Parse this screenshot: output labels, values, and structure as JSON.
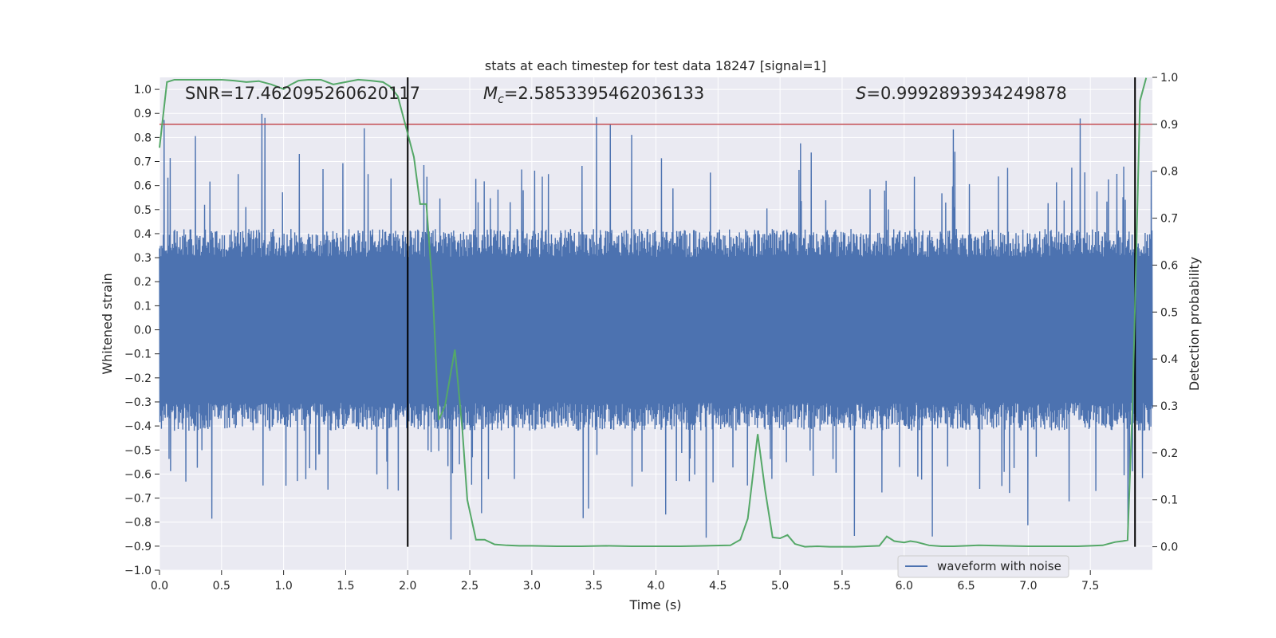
{
  "chart_data": {
    "type": "line",
    "title": "stats at each timestep for test data 18247 [signal=1]",
    "xlabel": "Time (s)",
    "ylabel": "Whitened strain",
    "ylabel_right": "Detection probability",
    "xlim": [
      0.0,
      8.0
    ],
    "ylim": [
      -1.0,
      1.05
    ],
    "ylim_right": [
      -0.05,
      1.0
    ],
    "x_ticks": [
      0.0,
      0.5,
      1.0,
      1.5,
      2.0,
      2.5,
      3.0,
      3.5,
      4.0,
      4.5,
      5.0,
      5.5,
      6.0,
      6.5,
      7.0,
      7.5
    ],
    "x_tick_labels": [
      "0.0",
      "0.5",
      "1.0",
      "1.5",
      "2.0",
      "2.5",
      "3.0",
      "3.5",
      "4.0",
      "4.5",
      "5.0",
      "5.5",
      "6.0",
      "6.5",
      "7.0",
      "7.5"
    ],
    "y_ticks": [
      -1.0,
      -0.9,
      -0.8,
      -0.7,
      -0.6,
      -0.5,
      -0.4,
      -0.3,
      -0.2,
      -0.1,
      0.0,
      0.1,
      0.2,
      0.3,
      0.4,
      0.5,
      0.6,
      0.7,
      0.8,
      0.9,
      1.0
    ],
    "y_tick_labels": [
      "−1.0",
      "−0.9",
      "−0.8",
      "−0.7",
      "−0.6",
      "−0.5",
      "−0.4",
      "−0.3",
      "−0.2",
      "−0.1",
      "0.0",
      "0.1",
      "0.2",
      "0.3",
      "0.4",
      "0.5",
      "0.6",
      "0.7",
      "0.8",
      "0.9",
      "1.0"
    ],
    "y_right_ticks": [
      0.0,
      0.1,
      0.2,
      0.3,
      0.4,
      0.5,
      0.6,
      0.7,
      0.8,
      0.9,
      1.0
    ],
    "y_right_tick_labels": [
      "0.0",
      "0.1",
      "0.2",
      "0.3",
      "0.4",
      "0.5",
      "0.6",
      "0.7",
      "0.8",
      "0.9",
      "1.0"
    ],
    "annotations": {
      "snr": "SNR=17.462095260620117",
      "mc_symbol": "M",
      "mc_sub": "c",
      "mc_value": "=2.5853395462036133",
      "s_symbol": "S",
      "s_value": "=0.9992893934249878"
    },
    "threshold_line": {
      "axis": "right",
      "value": 0.9,
      "color": "#c44e52"
    },
    "vertical_lines": [
      2.0,
      7.86
    ],
    "waveform": {
      "name": "waveform with noise",
      "color": "#4c72b0",
      "duration_s": 8.0,
      "typical_amplitude": 0.42,
      "peak_amplitude_range": [
        -0.9,
        1.0
      ],
      "seed": 18247
    },
    "series": [
      {
        "name": "detection probability",
        "axis": "right",
        "color": "#55a868",
        "x": [
          0.0,
          0.06,
          0.12,
          0.2,
          0.3,
          0.4,
          0.5,
          0.6,
          0.7,
          0.8,
          0.9,
          1.0,
          1.06,
          1.12,
          1.2,
          1.3,
          1.4,
          1.5,
          1.6,
          1.7,
          1.8,
          1.86,
          1.92,
          1.98,
          2.05,
          2.1,
          2.15,
          2.2,
          2.25,
          2.3,
          2.38,
          2.44,
          2.48,
          2.55,
          2.62,
          2.7,
          2.8,
          2.9,
          3.0,
          3.2,
          3.4,
          3.6,
          3.8,
          4.0,
          4.2,
          4.4,
          4.6,
          4.68,
          4.74,
          4.82,
          4.88,
          4.94,
          5.0,
          5.06,
          5.12,
          5.2,
          5.3,
          5.4,
          5.6,
          5.8,
          5.86,
          5.92,
          6.0,
          6.05,
          6.1,
          6.2,
          6.3,
          6.4,
          6.6,
          6.8,
          7.0,
          7.2,
          7.4,
          7.5,
          7.6,
          7.7,
          7.76,
          7.8,
          7.84,
          7.9,
          7.95
        ],
        "values": [
          0.85,
          0.99,
          0.995,
          0.995,
          0.995,
          0.995,
          0.995,
          0.993,
          0.99,
          0.992,
          0.985,
          0.975,
          0.985,
          0.993,
          0.995,
          0.995,
          0.985,
          0.99,
          0.995,
          0.993,
          0.99,
          0.98,
          0.96,
          0.9,
          0.83,
          0.73,
          0.73,
          0.55,
          0.27,
          0.3,
          0.42,
          0.25,
          0.1,
          0.015,
          0.015,
          0.005,
          0.003,
          0.002,
          0.002,
          0.001,
          0.001,
          0.002,
          0.001,
          0.001,
          0.001,
          0.002,
          0.003,
          0.015,
          0.06,
          0.24,
          0.12,
          0.02,
          0.018,
          0.025,
          0.006,
          0.0,
          0.001,
          0.0,
          0.0,
          0.002,
          0.022,
          0.012,
          0.009,
          0.012,
          0.01,
          0.003,
          0.001,
          0.001,
          0.003,
          0.002,
          0.001,
          0.001,
          0.001,
          0.002,
          0.003,
          0.01,
          0.012,
          0.014,
          0.3,
          0.95,
          0.999
        ]
      }
    ],
    "legend": {
      "placement": "bottom-right",
      "entries": [
        "waveform with noise"
      ]
    },
    "colors": {
      "background": "#eaeaf2",
      "grid": "#ffffff",
      "text": "#262626"
    }
  }
}
